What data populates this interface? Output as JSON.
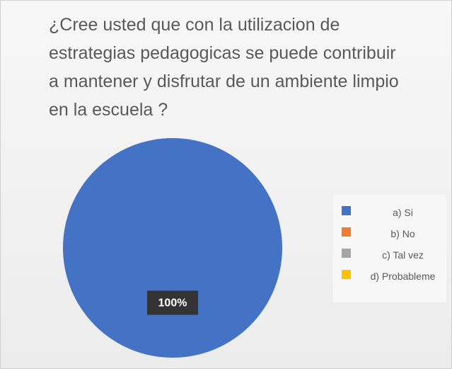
{
  "chart_data": {
    "type": "pie",
    "title": "¿Cree usted que con la utilizacion de estrategias pedagogicas se puede contribuir a mantener y disfrutar de un ambiente limpio en la escuela ?",
    "categories": [
      "a) Si",
      "b) No",
      "c) Tal vez",
      "d) Probableme"
    ],
    "values": [
      100,
      0,
      0,
      0
    ],
    "value_labels": [
      "100%",
      null,
      null,
      null
    ],
    "colors": [
      "#4472c4",
      "#ed7d31",
      "#a5a5a5",
      "#ffc000"
    ],
    "legend": "right"
  }
}
